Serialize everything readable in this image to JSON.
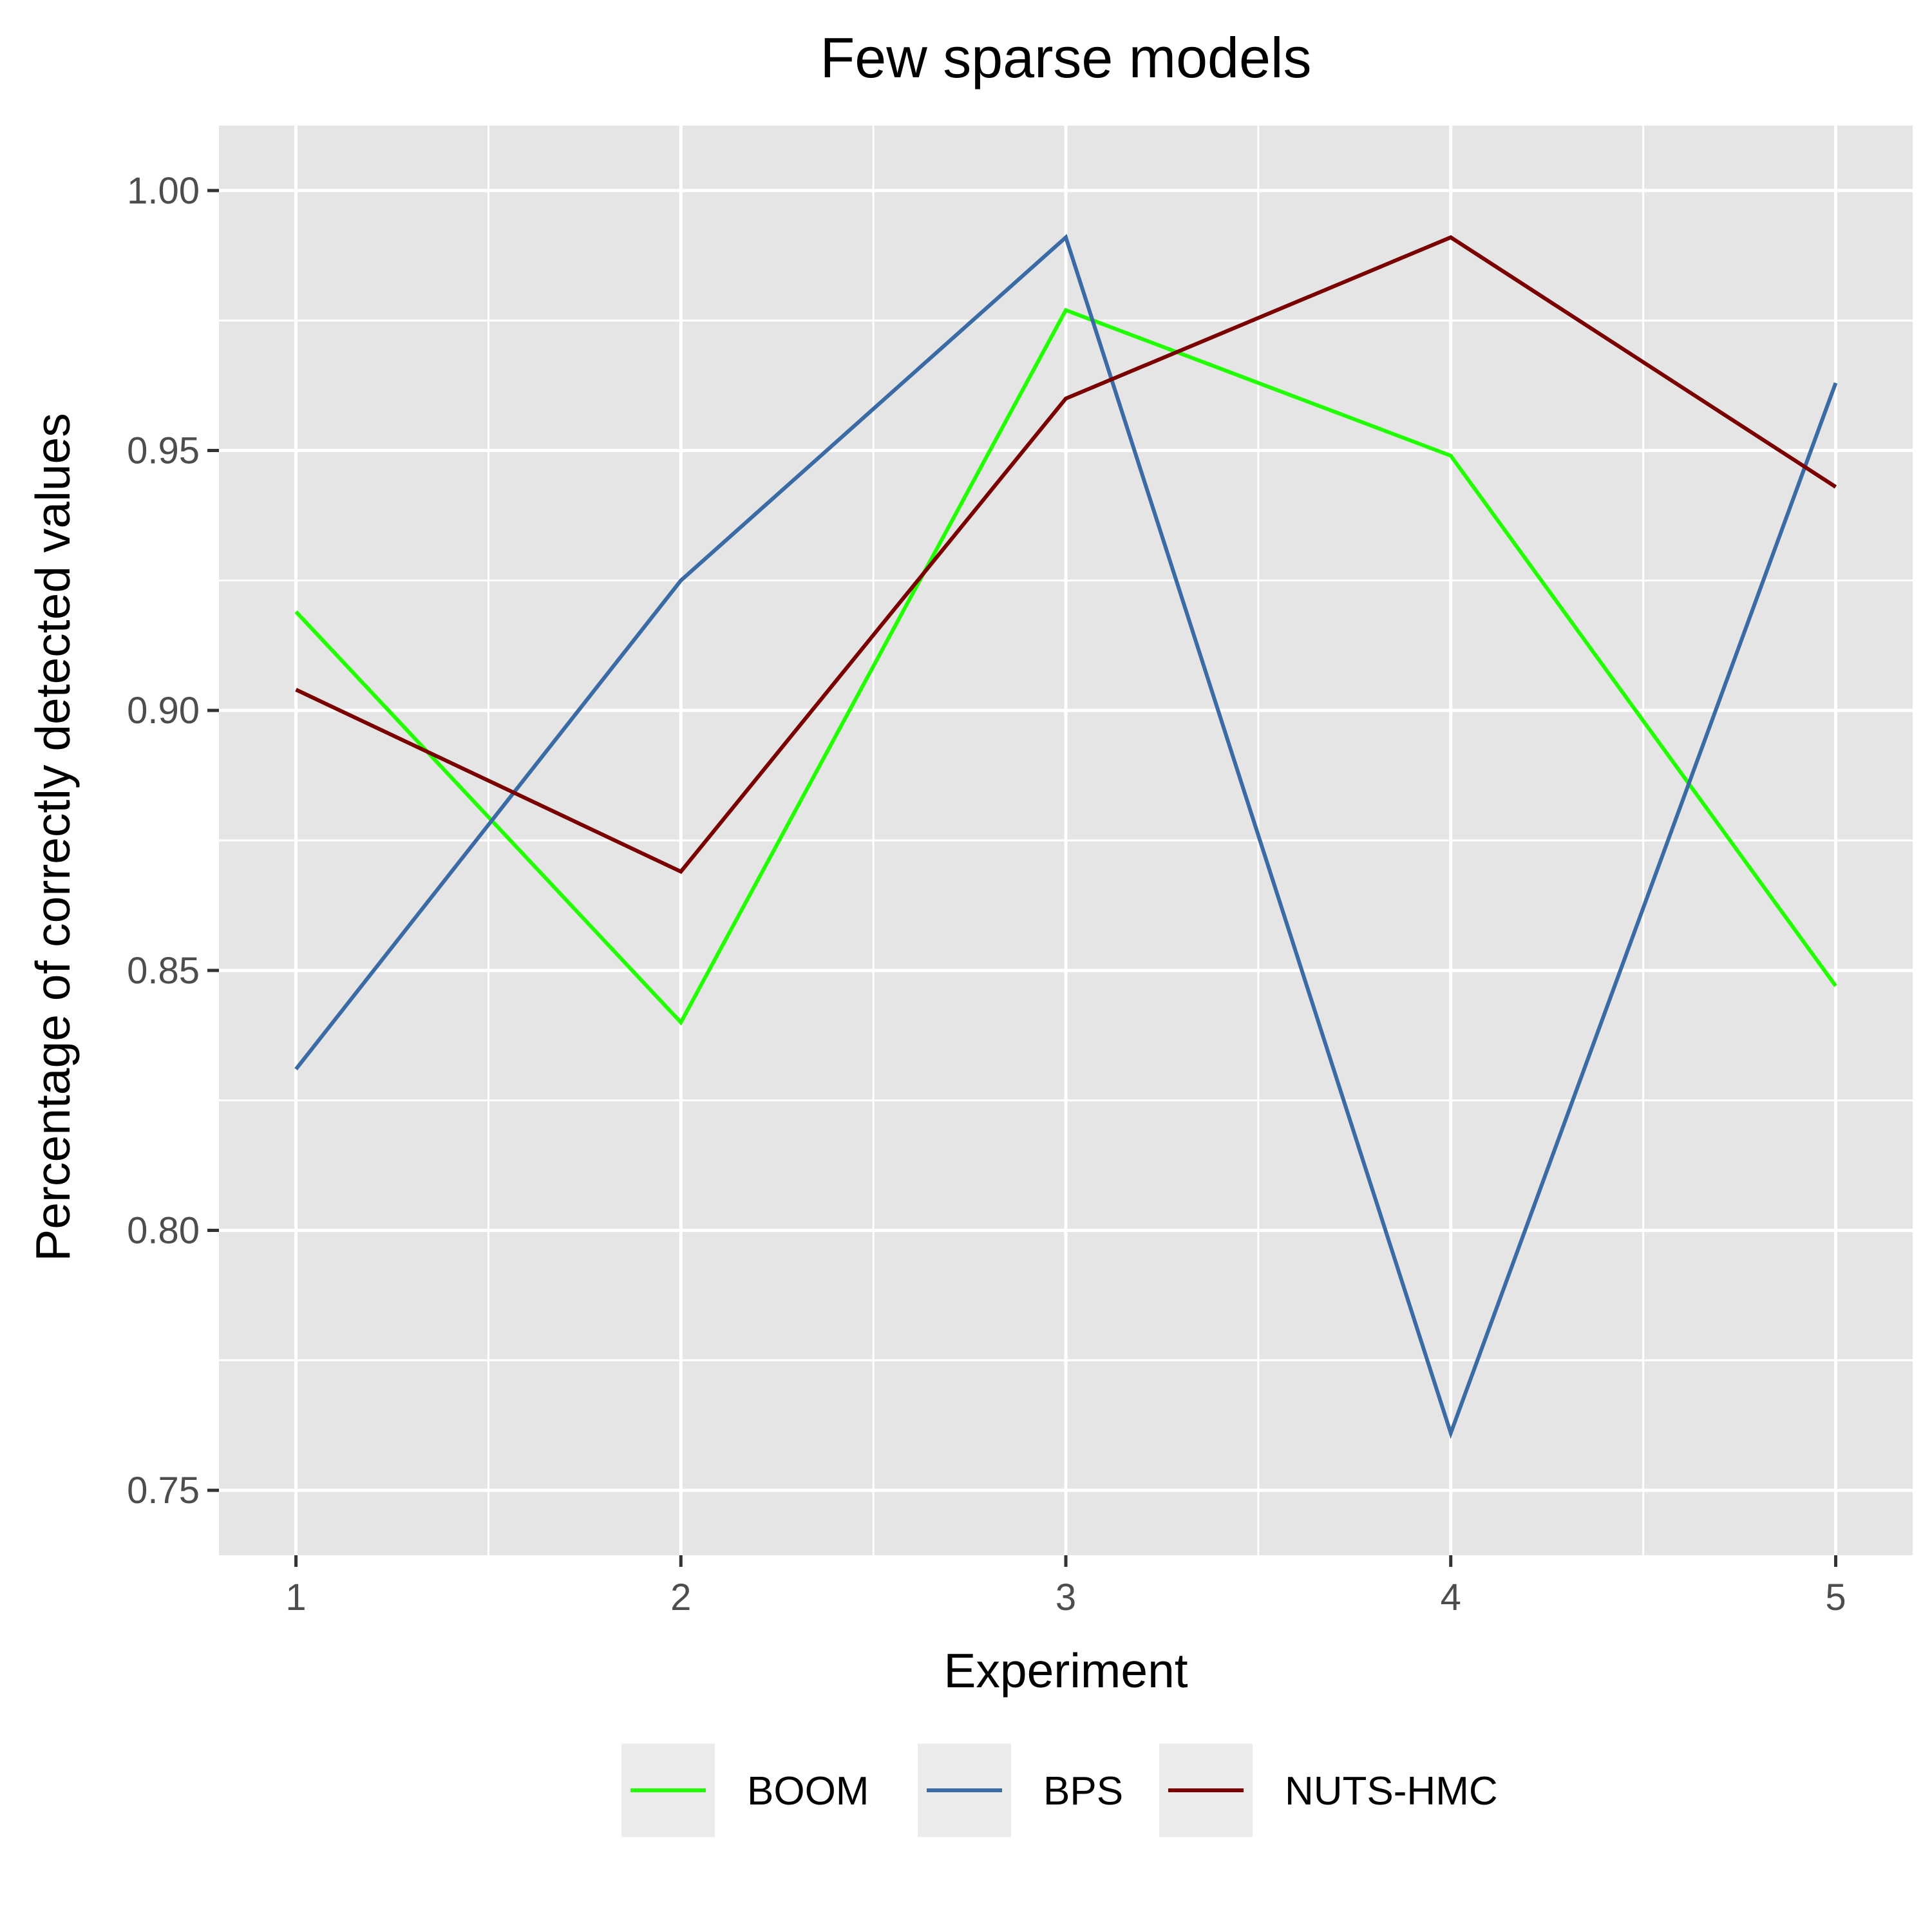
{
  "chart_data": {
    "type": "line",
    "title": "Few sparse models",
    "xlabel": "Experiment",
    "ylabel": "Percentage of correctly detected values",
    "x": [
      1,
      2,
      3,
      4,
      5
    ],
    "xlim": [
      0.8,
      5.2
    ],
    "ylim": [
      0.75,
      1.0
    ],
    "y_ticks": [
      "0.75",
      "0.80",
      "0.85",
      "0.90",
      "0.95",
      "1.00"
    ],
    "x_ticks": [
      "1",
      "2",
      "3",
      "4",
      "5"
    ],
    "grid": true,
    "legend_position": "bottom",
    "series": [
      {
        "name": "BOOM",
        "color": "#22ff00",
        "values": [
          0.919,
          0.84,
          0.977,
          0.949,
          0.847
        ]
      },
      {
        "name": "BPS",
        "color": "#3a6ba5",
        "values": [
          0.831,
          0.925,
          0.991,
          0.761,
          0.963
        ]
      },
      {
        "name": "NUTS-HMC",
        "color": "#7a0000",
        "values": [
          0.904,
          0.869,
          0.96,
          0.991,
          0.943
        ]
      }
    ]
  }
}
